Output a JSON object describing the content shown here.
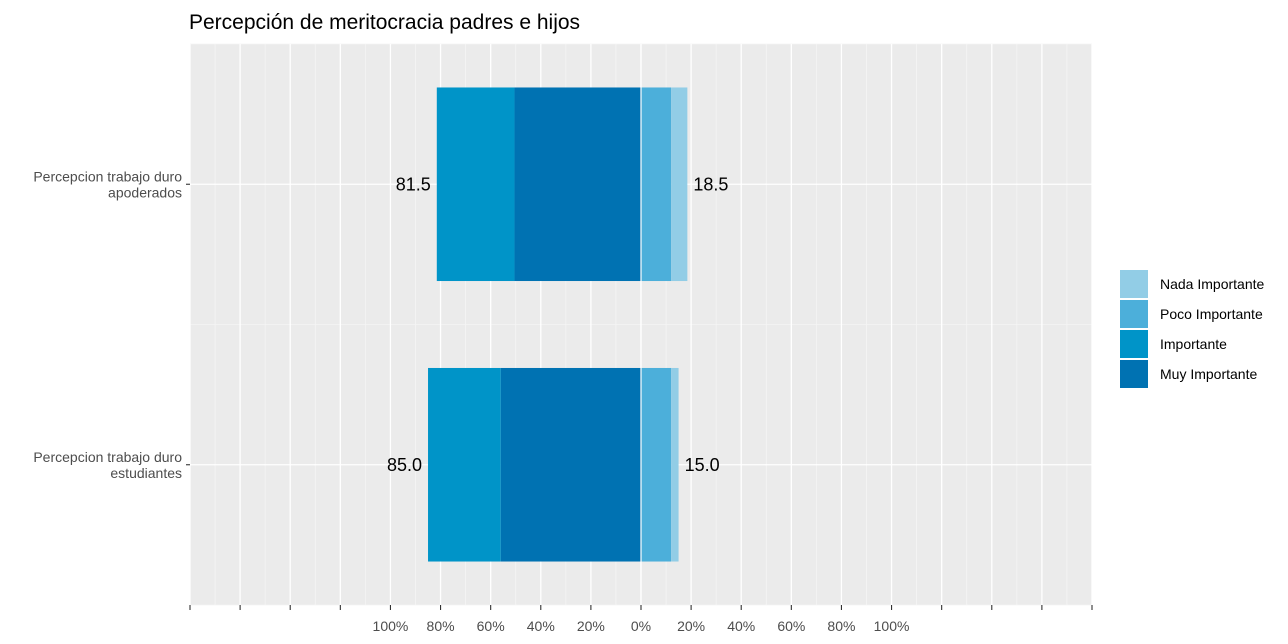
{
  "chart_data": {
    "type": "bar",
    "orientation": "horizontal-diverging",
    "title": "Percepción de meritocracia padres e hijos",
    "xlabel": "",
    "ylabel": "",
    "categories": [
      [
        "Percepcion trabajo duro",
        "apoderados"
      ],
      [
        "Percepcion trabajo duro",
        "estudiantes"
      ]
    ],
    "series": [
      {
        "name": "Muy Importante",
        "color": "#0072B2",
        "side": "negative",
        "values": [
          50.5,
          56.0
        ]
      },
      {
        "name": "Importante",
        "color": "#0094C8",
        "side": "negative",
        "values": [
          31.0,
          29.0
        ]
      },
      {
        "name": "Poco Importante",
        "color": "#4CAFDA",
        "side": "positive",
        "values": [
          12.0,
          12.0
        ]
      },
      {
        "name": "Nada Importante",
        "color": "#92CDE6",
        "side": "positive",
        "values": [
          6.5,
          3.0
        ]
      }
    ],
    "totals": {
      "negative": [
        "81.5",
        "85.0"
      ],
      "positive": [
        "18.5",
        "15.0"
      ]
    },
    "xlim": [
      -180,
      180
    ],
    "x_ticks": [
      {
        "value": -100,
        "label": "100%"
      },
      {
        "value": -80,
        "label": "80%"
      },
      {
        "value": -60,
        "label": "60%"
      },
      {
        "value": -40,
        "label": "40%"
      },
      {
        "value": -20,
        "label": "20%"
      },
      {
        "value": 0,
        "label": "0%"
      },
      {
        "value": 20,
        "label": "20%"
      },
      {
        "value": 40,
        "label": "40%"
      },
      {
        "value": 60,
        "label": "60%"
      },
      {
        "value": 80,
        "label": "80%"
      },
      {
        "value": 100,
        "label": "100%"
      }
    ],
    "legend": {
      "position": "right",
      "order": [
        "Nada Importante",
        "Poco Importante",
        "Importante",
        "Muy Importante"
      ]
    },
    "grid": true,
    "panel_background": "#EBEBEB"
  }
}
